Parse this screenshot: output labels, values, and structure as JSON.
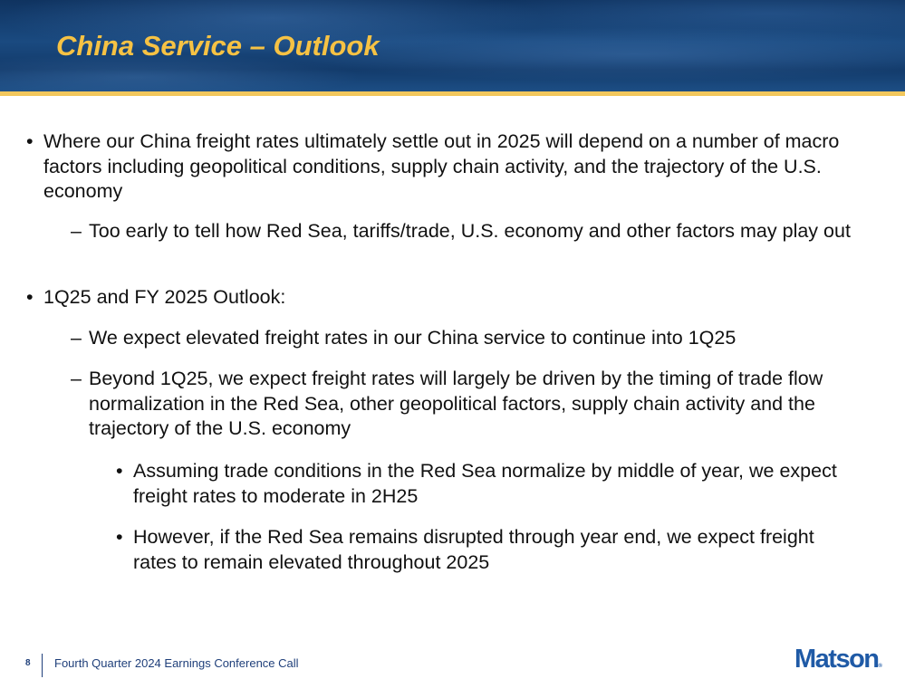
{
  "header": {
    "title": "China Service – Outlook"
  },
  "bullets": [
    {
      "level": 1,
      "marker": "•",
      "text": "Where our China freight rates ultimately settle out in 2025 will depend on a number of macro factors including geopolitical conditions, supply chain activity, and the trajectory of the U.S. economy"
    },
    {
      "level": 2,
      "marker": "–",
      "text": "Too early to tell how Red Sea, tariffs/trade, U.S. economy and other factors may play out"
    },
    {
      "level": 1,
      "marker": "•",
      "text": "1Q25 and FY 2025 Outlook:"
    },
    {
      "level": 2,
      "marker": "–",
      "text": "We expect elevated freight rates in our China service to continue into 1Q25"
    },
    {
      "level": 2,
      "marker": "–",
      "text": "Beyond 1Q25, we expect freight rates will largely be driven by the timing of trade flow normalization in the Red Sea, other geopolitical factors, supply chain activity and the trajectory of the U.S. economy"
    },
    {
      "level": 3,
      "marker": "•",
      "text": "Assuming trade conditions in the Red Sea normalize by middle of year, we expect freight rates to moderate in 2H25"
    },
    {
      "level": 3,
      "marker": "•",
      "text": "However, if the Red Sea remains disrupted through year end, we expect freight rates to remain elevated throughout 2025"
    }
  ],
  "footer": {
    "page_number": "8",
    "text": "Fourth Quarter 2024 Earnings Conference Call",
    "logo": "Matson"
  },
  "colors": {
    "title": "#f6c244",
    "header_bg": "#123a6a",
    "accent_bar": "#f2c75c",
    "footer": "#1f3f7a"
  }
}
